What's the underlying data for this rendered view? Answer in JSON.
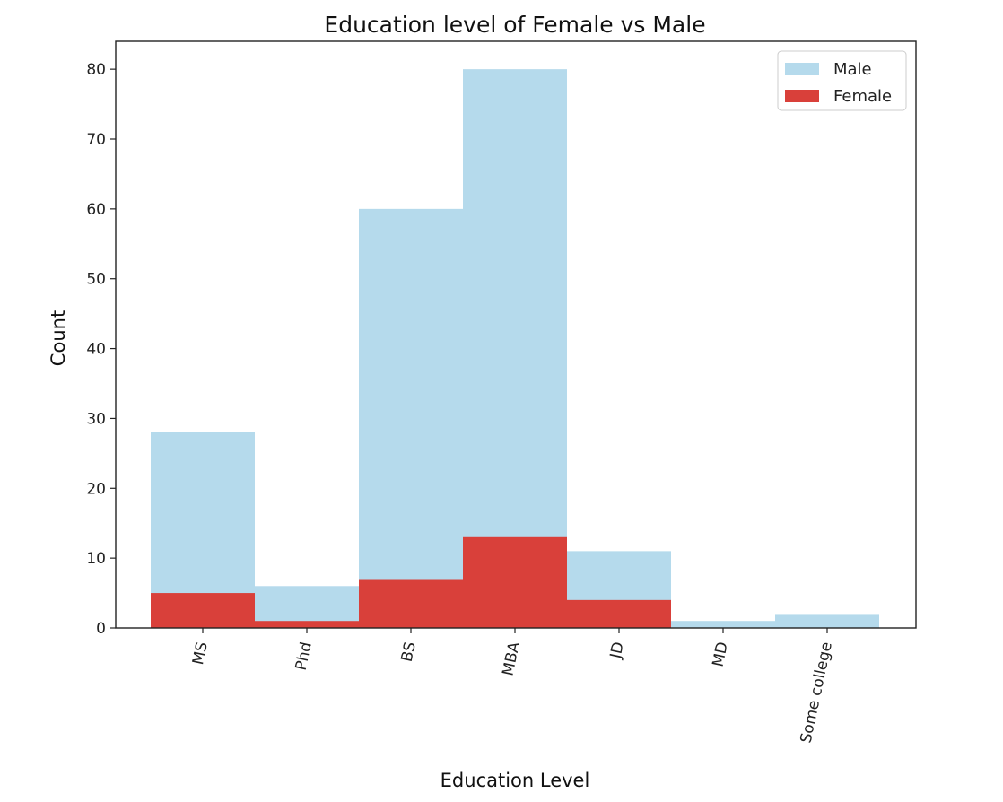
{
  "chart_data": {
    "type": "bar",
    "title": "Education level of Female vs Male",
    "xlabel": "Education Level",
    "ylabel": "Count",
    "categories": [
      "MS",
      "Phd",
      "BS",
      "MBA",
      "JD",
      "MD",
      "Some college"
    ],
    "series": [
      {
        "name": "Male",
        "values": [
          28,
          6,
          60,
          80,
          11,
          1,
          2
        ],
        "color": "#b5daec"
      },
      {
        "name": "Female",
        "values": [
          5,
          1,
          7,
          13,
          4,
          0,
          0
        ],
        "color": "#d9403a"
      }
    ],
    "ylim": [
      0,
      84
    ],
    "yticks": [
      0,
      10,
      20,
      30,
      40,
      50,
      60,
      70,
      80
    ],
    "grid": false,
    "legend_position": "top-right",
    "bar_overlay": true,
    "xtick_rotation": "rotated"
  }
}
